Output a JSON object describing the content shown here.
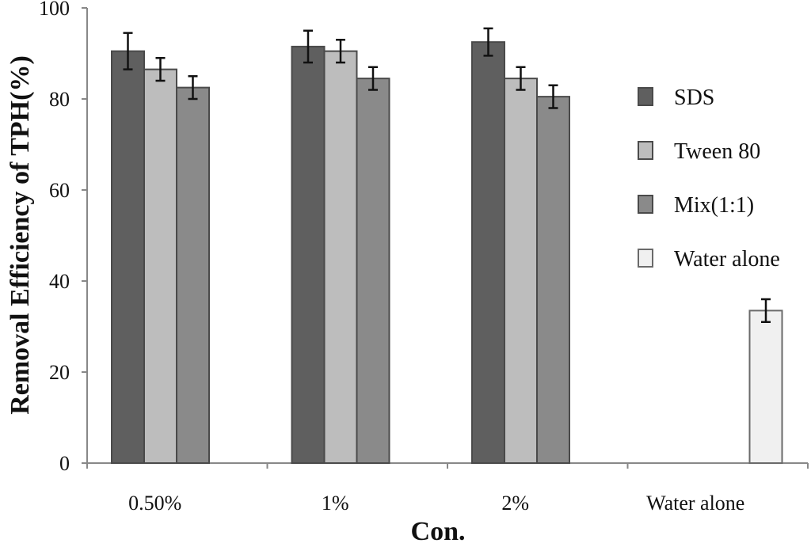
{
  "chart_data": {
    "type": "bar",
    "title": "",
    "xlabel": "Con.",
    "ylabel": "Removal Efficiency of TPH(%)",
    "ylim": [
      0,
      100
    ],
    "yticks": [
      0,
      20,
      40,
      60,
      80,
      100
    ],
    "categories": [
      "0.50%",
      "1%",
      "2%",
      "Water alone"
    ],
    "legend_position": "right",
    "series": [
      {
        "name": "SDS",
        "color": "#5f5f5f",
        "values": [
          90.5,
          91.5,
          92.5,
          null
        ],
        "errors": [
          4.0,
          3.5,
          3.0,
          null
        ]
      },
      {
        "name": "Tween 80",
        "color": "#bdbdbd",
        "values": [
          86.5,
          90.5,
          84.5,
          null
        ],
        "errors": [
          2.5,
          2.5,
          2.5,
          null
        ]
      },
      {
        "name": "Mix(1:1)",
        "color": "#8a8a8a",
        "values": [
          82.5,
          84.5,
          80.5,
          null
        ],
        "errors": [
          2.5,
          2.5,
          2.5,
          null
        ]
      },
      {
        "name": "Water alone",
        "color": "#f0f0f0",
        "values": [
          null,
          null,
          null,
          33.5
        ],
        "errors": [
          null,
          null,
          null,
          2.5
        ]
      }
    ]
  }
}
